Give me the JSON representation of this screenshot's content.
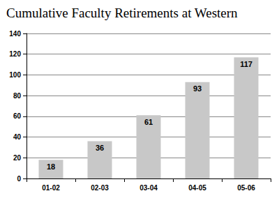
{
  "chart_data": {
    "type": "bar",
    "title": "Cumulative Faculty Retirements at Western",
    "categories": [
      "01-02",
      "02-03",
      "03-04",
      "04-05",
      "05-06"
    ],
    "values": [
      18,
      36,
      61,
      93,
      117
    ],
    "color": "#c8c8c8",
    "ylim": [
      0,
      140
    ],
    "yticks": [
      0,
      20,
      40,
      60,
      80,
      100,
      120,
      140
    ],
    "grid": true,
    "data_labels": true
  }
}
